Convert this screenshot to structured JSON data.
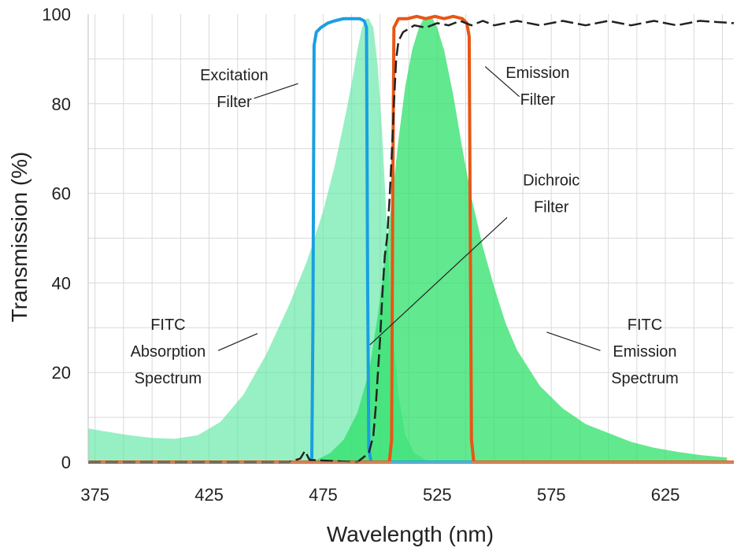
{
  "chart_data": {
    "type": "area",
    "xlabel": "Wavelength (nm)",
    "ylabel": "Transmission (%)",
    "xlim": [
      372,
      655
    ],
    "ylim": [
      0,
      100
    ],
    "x_ticks": [
      375,
      425,
      475,
      525,
      575,
      625
    ],
    "y_ticks": [
      0,
      20,
      40,
      60,
      80,
      100
    ],
    "grid": true,
    "colors": {
      "absorption": "#5ee8a4",
      "emission_spectrum": "#2ee06a",
      "excitation": "#1a9fe0",
      "emission_filter": "#ea5514",
      "dichroic": "#222222",
      "grid": "#d9d9d9"
    },
    "series": [
      {
        "name": "FITC Absorption Spectrum",
        "style": "fill",
        "points": [
          [
            372,
            7.5
          ],
          [
            380,
            6.8
          ],
          [
            390,
            6
          ],
          [
            400,
            5.4
          ],
          [
            410,
            5.2
          ],
          [
            420,
            6
          ],
          [
            430,
            9
          ],
          [
            440,
            15
          ],
          [
            450,
            24
          ],
          [
            460,
            35
          ],
          [
            468,
            45
          ],
          [
            475,
            56
          ],
          [
            480,
            66
          ],
          [
            485,
            78
          ],
          [
            488,
            86
          ],
          [
            490,
            92
          ],
          [
            492,
            97
          ],
          [
            494,
            99
          ],
          [
            495,
            99
          ],
          [
            497,
            97
          ],
          [
            499,
            88
          ],
          [
            501,
            72
          ],
          [
            503,
            52
          ],
          [
            505,
            32
          ],
          [
            508,
            15
          ],
          [
            511,
            6
          ],
          [
            515,
            2
          ],
          [
            520,
            0.5
          ],
          [
            525,
            0
          ]
        ]
      },
      {
        "name": "FITC Emission Spectrum",
        "style": "fill",
        "points": [
          [
            466,
            0
          ],
          [
            472,
            0.5
          ],
          [
            478,
            2
          ],
          [
            484,
            5
          ],
          [
            490,
            11
          ],
          [
            495,
            20
          ],
          [
            499,
            33
          ],
          [
            502,
            45
          ],
          [
            505,
            58
          ],
          [
            508,
            72
          ],
          [
            511,
            84
          ],
          [
            514,
            92
          ],
          [
            517,
            97
          ],
          [
            519,
            99
          ],
          [
            521,
            99.5
          ],
          [
            523,
            99
          ],
          [
            525,
            97
          ],
          [
            528,
            92
          ],
          [
            532,
            82
          ],
          [
            536,
            70
          ],
          [
            540,
            59
          ],
          [
            545,
            48
          ],
          [
            550,
            39
          ],
          [
            555,
            31
          ],
          [
            560,
            25
          ],
          [
            565,
            21
          ],
          [
            570,
            17
          ],
          [
            580,
            12
          ],
          [
            590,
            8.5
          ],
          [
            600,
            6.5
          ],
          [
            610,
            4.5
          ],
          [
            620,
            3.2
          ],
          [
            630,
            2.3
          ],
          [
            640,
            1.6
          ],
          [
            652,
            1
          ]
        ]
      },
      {
        "name": "Excitation Filter",
        "style": "line",
        "points": [
          [
            372,
            0
          ],
          [
            469,
            0
          ],
          [
            470,
            1
          ],
          [
            470.5,
            30
          ],
          [
            471,
            93
          ],
          [
            472,
            96
          ],
          [
            474,
            97
          ],
          [
            477,
            98
          ],
          [
            480,
            98.5
          ],
          [
            484,
            99
          ],
          [
            488,
            99
          ],
          [
            491,
            99
          ],
          [
            493,
            98.5
          ],
          [
            494,
            97
          ],
          [
            494.5,
            40
          ],
          [
            495,
            3
          ],
          [
            496,
            0
          ],
          [
            655,
            0
          ]
        ]
      },
      {
        "name": "Emission Filter",
        "style": "line",
        "points": [
          [
            372,
            0
          ],
          [
            504,
            0
          ],
          [
            505,
            5
          ],
          [
            505.5,
            60
          ],
          [
            506,
            97
          ],
          [
            508,
            99
          ],
          [
            512,
            99
          ],
          [
            516,
            99.5
          ],
          [
            520,
            99
          ],
          [
            524,
            99.5
          ],
          [
            528,
            99
          ],
          [
            532,
            99.5
          ],
          [
            536,
            99
          ],
          [
            538,
            98
          ],
          [
            539,
            95
          ],
          [
            539.5,
            50
          ],
          [
            540,
            5
          ],
          [
            541,
            0
          ],
          [
            655,
            0
          ]
        ]
      },
      {
        "name": "Dichroic Filter",
        "style": "dashed",
        "points": [
          [
            372,
            0
          ],
          [
            395,
            0
          ],
          [
            430,
            0
          ],
          [
            460,
            0
          ],
          [
            465,
            0.8
          ],
          [
            467,
            2.5
          ],
          [
            469,
            0.5
          ],
          [
            490,
            0
          ],
          [
            495,
            2
          ],
          [
            497,
            6
          ],
          [
            498,
            12
          ],
          [
            499,
            20
          ],
          [
            500,
            28
          ],
          [
            501,
            38
          ],
          [
            502,
            46
          ],
          [
            503,
            50
          ],
          [
            504,
            58
          ],
          [
            505,
            68
          ],
          [
            506,
            80
          ],
          [
            507,
            90
          ],
          [
            508,
            94
          ],
          [
            510,
            96
          ],
          [
            515,
            97.5
          ],
          [
            520,
            97
          ],
          [
            525,
            98
          ],
          [
            530,
            97.5
          ],
          [
            535,
            98.5
          ],
          [
            540,
            97.5
          ],
          [
            545,
            98.5
          ],
          [
            550,
            97.5
          ],
          [
            560,
            98.5
          ],
          [
            570,
            97.5
          ],
          [
            580,
            98.5
          ],
          [
            590,
            97.5
          ],
          [
            600,
            98.5
          ],
          [
            610,
            97.5
          ],
          [
            620,
            98.5
          ],
          [
            630,
            97.5
          ],
          [
            640,
            98.5
          ],
          [
            655,
            98
          ]
        ]
      }
    ],
    "annotations": [
      {
        "lines": [
          "Excitation",
          "Filter"
        ],
        "text_at": [
          436,
          83.5
        ],
        "pointer": [
          [
            444.7,
            81.2
          ],
          [
            464,
            84.5
          ]
        ]
      },
      {
        "lines": [
          "Emission",
          "Filter"
        ],
        "text_at": [
          569,
          84
        ],
        "pointer": [
          [
            546,
            88.3
          ],
          [
            561,
            81.6
          ]
        ]
      },
      {
        "lines": [
          "Dichroic",
          "Filter"
        ],
        "text_at": [
          575,
          60
        ],
        "pointer": [
          [
            495.5,
            26.2
          ],
          [
            555.6,
            54.6
          ]
        ]
      },
      {
        "lines": [
          "FITC",
          "Absorption",
          "Spectrum"
        ],
        "text_at": [
          407,
          24.8
        ],
        "pointer": [
          [
            429,
            24.9
          ],
          [
            446.2,
            28.7
          ]
        ]
      },
      {
        "lines": [
          "FITC",
          "Emission",
          "Spectrum"
        ],
        "text_at": [
          616,
          24.8
        ],
        "pointer": [
          [
            573,
            29
          ],
          [
            596.5,
            24.9
          ]
        ]
      }
    ]
  }
}
